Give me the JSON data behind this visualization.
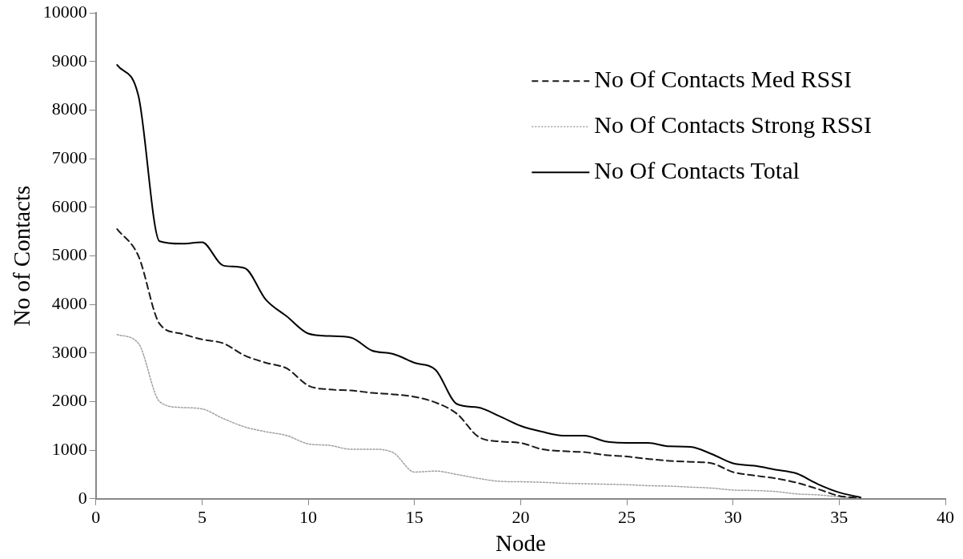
{
  "chart_data": {
    "type": "line",
    "xlabel": "Node",
    "ylabel": "No of Contacts",
    "x": [
      1,
      2,
      3,
      4,
      5,
      6,
      7,
      8,
      9,
      10,
      11,
      12,
      13,
      14,
      15,
      16,
      17,
      18,
      19,
      20,
      21,
      22,
      23,
      24,
      25,
      26,
      27,
      28,
      29,
      30,
      31,
      32,
      33,
      34,
      35,
      36
    ],
    "xlim": [
      0,
      40
    ],
    "xticks": [
      0,
      5,
      10,
      15,
      20,
      25,
      30,
      35,
      40
    ],
    "ylim": [
      0,
      10000
    ],
    "yticks": [
      0,
      1000,
      2000,
      3000,
      4000,
      5000,
      6000,
      7000,
      8000,
      9000,
      10000
    ],
    "grid": false,
    "legend": "top right",
    "marker": "none",
    "series": [
      {
        "name": "No Of Contacts Med RSSI",
        "color": "#1a1a1a",
        "line_style": "dashed",
        "values": [
          5550,
          5000,
          3600,
          3400,
          3280,
          3200,
          2950,
          2800,
          2680,
          2330,
          2250,
          2230,
          2180,
          2150,
          2100,
          1980,
          1750,
          1280,
          1180,
          1150,
          1020,
          980,
          960,
          900,
          870,
          820,
          780,
          760,
          730,
          550,
          480,
          420,
          330,
          200,
          60,
          20
        ]
      },
      {
        "name": "No Of Contacts Strong RSSI",
        "color": "#a0a0a0",
        "line_style": "dotted",
        "values": [
          3380,
          3200,
          2000,
          1880,
          1850,
          1650,
          1480,
          1380,
          1300,
          1130,
          1100,
          1020,
          1020,
          950,
          550,
          570,
          500,
          420,
          360,
          350,
          340,
          320,
          310,
          300,
          290,
          270,
          260,
          240,
          220,
          180,
          170,
          150,
          100,
          80,
          40,
          10
        ]
      },
      {
        "name": "No Of Contacts Total",
        "color": "#000000",
        "line_style": "solid",
        "values": [
          8930,
          8300,
          5300,
          5250,
          5280,
          4800,
          4750,
          4100,
          3750,
          3400,
          3350,
          3320,
          3050,
          2980,
          2800,
          2650,
          1950,
          1880,
          1700,
          1500,
          1380,
          1300,
          1300,
          1180,
          1150,
          1150,
          1080,
          1070,
          920,
          730,
          680,
          600,
          520,
          300,
          130,
          30
        ]
      }
    ]
  }
}
